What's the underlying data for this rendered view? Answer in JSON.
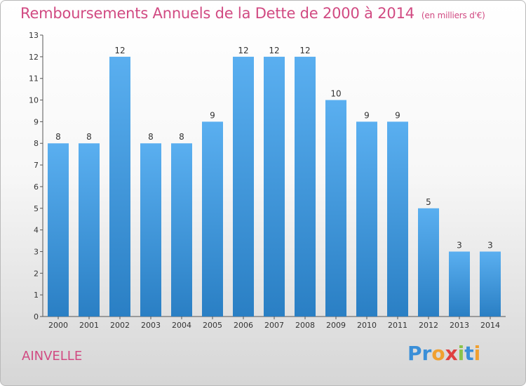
{
  "title": "Remboursements Annuels de la Dette de 2000 à 2014",
  "unit": "(en milliers d'€)",
  "location": "AINVELLE",
  "brand": {
    "letters": [
      "P",
      "r",
      "o",
      "x",
      "i",
      "t",
      "i"
    ],
    "colors": [
      "#3a8fd8",
      "#3a8fd8",
      "#f0a030",
      "#e04040",
      "#8bc34a",
      "#3a8fd8",
      "#f0a030"
    ]
  },
  "colors": {
    "bar": "#4aa3e6",
    "bar_dark": "#2a7fc4",
    "title": "#d14a82"
  },
  "chart_data": {
    "type": "bar",
    "title": "Remboursements Annuels de la Dette de 2000 à 2014",
    "xlabel": "",
    "ylabel": "",
    "ylim": [
      0,
      13
    ],
    "yticks": [
      "0",
      "1",
      "2",
      "3",
      "4",
      "5",
      "6",
      "7",
      "8",
      "9",
      "10",
      "11",
      "12",
      "13"
    ],
    "categories": [
      "2000",
      "2001",
      "2002",
      "2003",
      "2004",
      "2005",
      "2006",
      "2007",
      "2008",
      "2009",
      "2010",
      "2011",
      "2012",
      "2013",
      "2014"
    ],
    "values": [
      8,
      8,
      12,
      8,
      8,
      9,
      12,
      12,
      12,
      10,
      9,
      9,
      5,
      3,
      3
    ],
    "value_labels": [
      "8",
      "8",
      "12",
      "8",
      "8",
      "9",
      "12",
      "12",
      "12",
      "10",
      "9",
      "9",
      "5",
      "3",
      "3"
    ],
    "grid": false,
    "legend": "none"
  }
}
